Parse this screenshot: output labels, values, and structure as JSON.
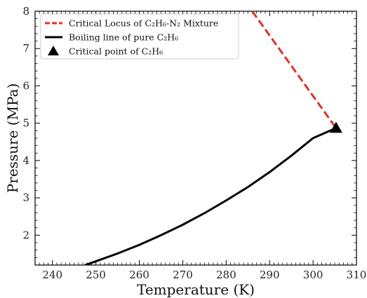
{
  "chart_data": {
    "type": "line",
    "xlabel": "Temperature (K)",
    "ylabel": "Pressure (MPa)",
    "xlim": [
      236,
      310
    ],
    "ylim": [
      1.2,
      8
    ],
    "x_ticks": [
      240,
      250,
      260,
      270,
      280,
      290,
      300,
      310
    ],
    "y_ticks": [
      2,
      3,
      4,
      5,
      6,
      7,
      8
    ],
    "grid": false,
    "legend_position": "top-left",
    "series": [
      {
        "name": "Critical Locus of C₂H₆-N₂ Mixture",
        "style": "dashed",
        "color": "#e0302b",
        "x": [
          286.0,
          305.3
        ],
        "y": [
          8.0,
          4.87
        ]
      },
      {
        "name": "Boiling line of pure C₂H₆",
        "style": "solid",
        "color": "#000000",
        "x": [
          247.5,
          250,
          255,
          260,
          265,
          270,
          275,
          280,
          285,
          290,
          295,
          300,
          305.3
        ],
        "y": [
          1.2,
          1.3,
          1.51,
          1.74,
          2.0,
          2.28,
          2.59,
          2.93,
          3.29,
          3.69,
          4.13,
          4.6,
          4.87
        ]
      },
      {
        "name": "Critical point of C₂H₆",
        "style": "marker",
        "marker": "triangle",
        "color": "#000000",
        "x": [
          305.3
        ],
        "y": [
          4.87
        ]
      }
    ]
  }
}
